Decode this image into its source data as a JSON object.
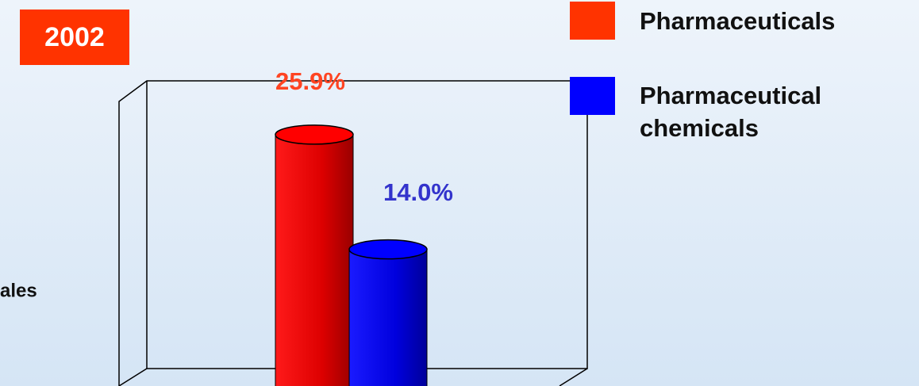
{
  "chart_data": {
    "type": "bar",
    "title": "2002",
    "y_label": "ales",
    "categories": [
      null
    ],
    "series": [
      {
        "name": "Pharmaceuticals",
        "color": "#ff0000",
        "values": [
          25.9
        ],
        "value_labels": [
          "25.9%"
        ],
        "label_color": "#ff4422"
      },
      {
        "name": "Pharmaceutical chemicals",
        "color": "#0000ff",
        "values": [
          14.0
        ],
        "value_labels": [
          "14.0%"
        ],
        "label_color": "#3333cc"
      }
    ],
    "legend_colors": [
      "#ff3300",
      "#0000ff"
    ],
    "ylim": [
      0,
      30
    ]
  }
}
